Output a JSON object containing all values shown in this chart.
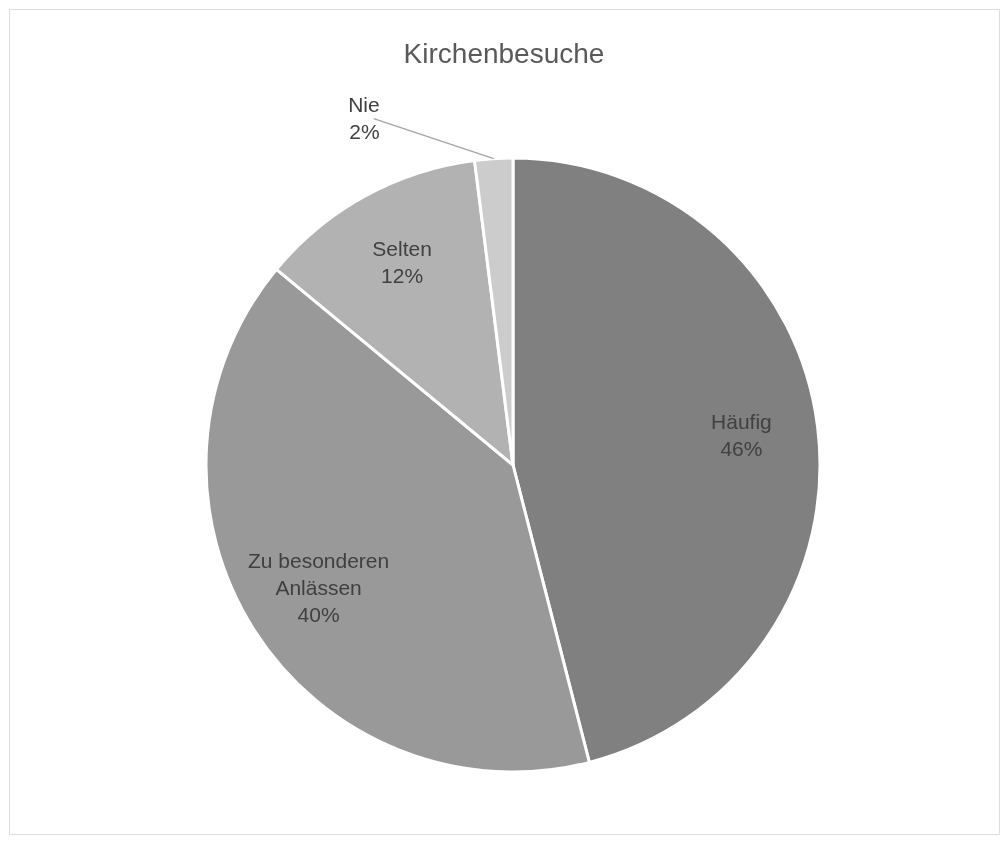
{
  "chart_data": {
    "type": "pie",
    "title": "Kirchenbesuche",
    "categories": [
      "Häufig",
      "Zu besonderen Anlässen",
      "Selten",
      "Nie"
    ],
    "values": [
      46,
      40,
      12,
      2
    ],
    "value_labels": [
      "46%",
      "40%",
      "12%",
      "2%"
    ],
    "colors": [
      "#808080",
      "#999999",
      "#b2b2b2",
      "#cccccc"
    ],
    "legend": false
  }
}
